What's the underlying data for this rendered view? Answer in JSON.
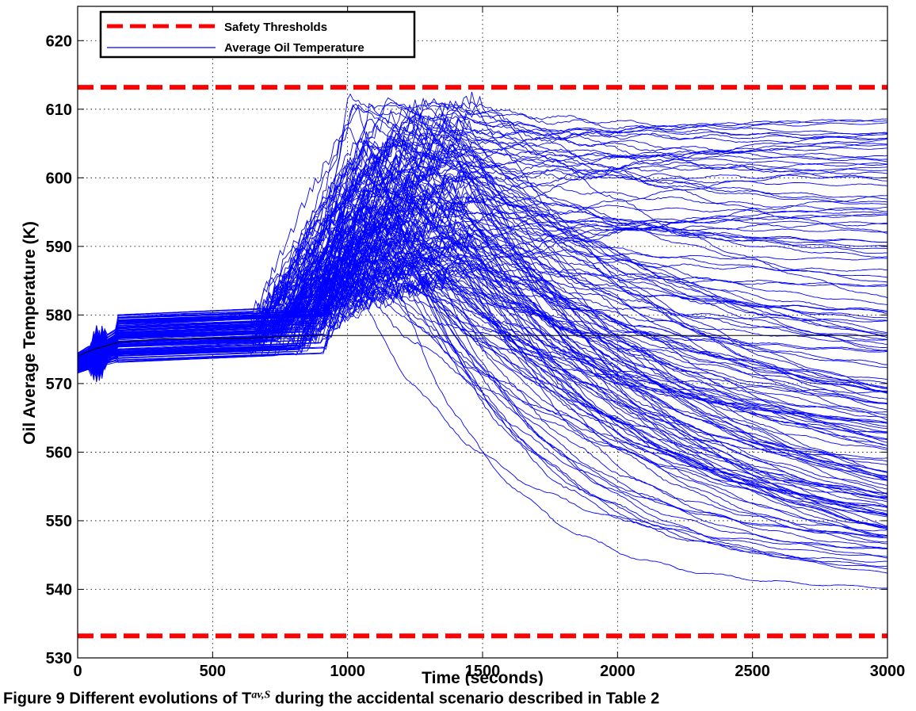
{
  "chart_data": {
    "type": "line",
    "xlabel": "Time (seconds)",
    "ylabel": "Oil Average Temperature (K)",
    "xlim": [
      0,
      3000
    ],
    "ylim": [
      530,
      625
    ],
    "x_ticks": [
      0,
      500,
      1000,
      1500,
      2000,
      2500,
      3000
    ],
    "y_ticks": [
      530,
      540,
      550,
      560,
      570,
      580,
      590,
      600,
      610,
      620
    ],
    "grid": true,
    "legend": {
      "placement": "top-left",
      "entries": [
        {
          "label": "Safety Thresholds",
          "color": "#ff0000",
          "style": "dashed-thick"
        },
        {
          "label": "Average Oil Temperature",
          "color": "#0000ff",
          "style": "solid-thin"
        }
      ]
    },
    "thresholds": {
      "name": "Safety Thresholds",
      "values": [
        613.2,
        533.2
      ],
      "color": "#ff0000"
    },
    "nominal_trace": {
      "color": "#000000",
      "x": [
        0,
        60,
        150,
        300,
        600,
        900,
        1200,
        2000,
        3000
      ],
      "y": [
        574,
        575,
        576,
        576.5,
        576.6,
        577,
        577,
        577,
        577
      ]
    },
    "series_group": {
      "name": "Average Oil Temperature",
      "color": "#0000ff",
      "count": 160,
      "description_envelope": {
        "x": [
          0,
          500,
          700,
          900,
          1000,
          1200,
          1500,
          2000,
          2500,
          3000
        ],
        "y_min": [
          572,
          574,
          575,
          576,
          577,
          578,
          560,
          548,
          541,
          538.5
        ],
        "y_max": [
          575,
          581,
          585,
          600,
          610,
          612.5,
          611,
          610.5,
          611,
          611.6
        ]
      },
      "final_values_sample": [
        611.6,
        609,
        607,
        605,
        604.5,
        603,
        602,
        600,
        597,
        596,
        592,
        590,
        588,
        584,
        580,
        578,
        575,
        572,
        570,
        568,
        565,
        562,
        560,
        556,
        552,
        550,
        548,
        547,
        546,
        545,
        544,
        543,
        541,
        540.5,
        538.5
      ]
    }
  },
  "caption": "Figure 9 Different evolutions of T",
  "caption_sup": "av,S",
  "caption_rest": " during the accidental scenario described in Table 2"
}
